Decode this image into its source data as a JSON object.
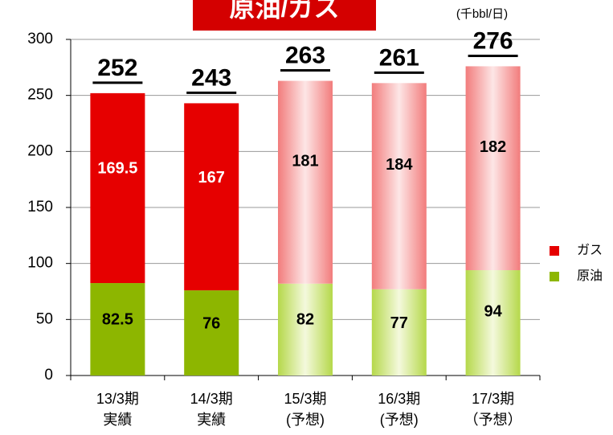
{
  "chart_data": {
    "type": "stacked_bar",
    "title": "原油/ガス",
    "unit": "(千bbl/日)",
    "categories": [
      [
        "13/3期",
        "実績"
      ],
      [
        "14/3期",
        "実績"
      ],
      [
        "15/3期",
        "(予想)"
      ],
      [
        "16/3期",
        "(予想)"
      ],
      [
        "17/3期",
        "（予想）"
      ]
    ],
    "series": [
      {
        "name": "原油",
        "color": "#8db600",
        "values": [
          82.5,
          76,
          82,
          77,
          94
        ]
      },
      {
        "name": "ガス",
        "color": "#e60000",
        "values": [
          169.5,
          167,
          181,
          184,
          182
        ]
      }
    ],
    "totals": [
      252,
      243,
      263,
      261,
      276
    ],
    "bar_style": [
      "solid",
      "solid",
      "gradient",
      "gradient",
      "gradient"
    ],
    "ylim": [
      0,
      300
    ],
    "yticks": [
      0,
      50,
      100,
      150,
      200,
      250,
      300
    ],
    "grid": true,
    "legend": "right"
  }
}
